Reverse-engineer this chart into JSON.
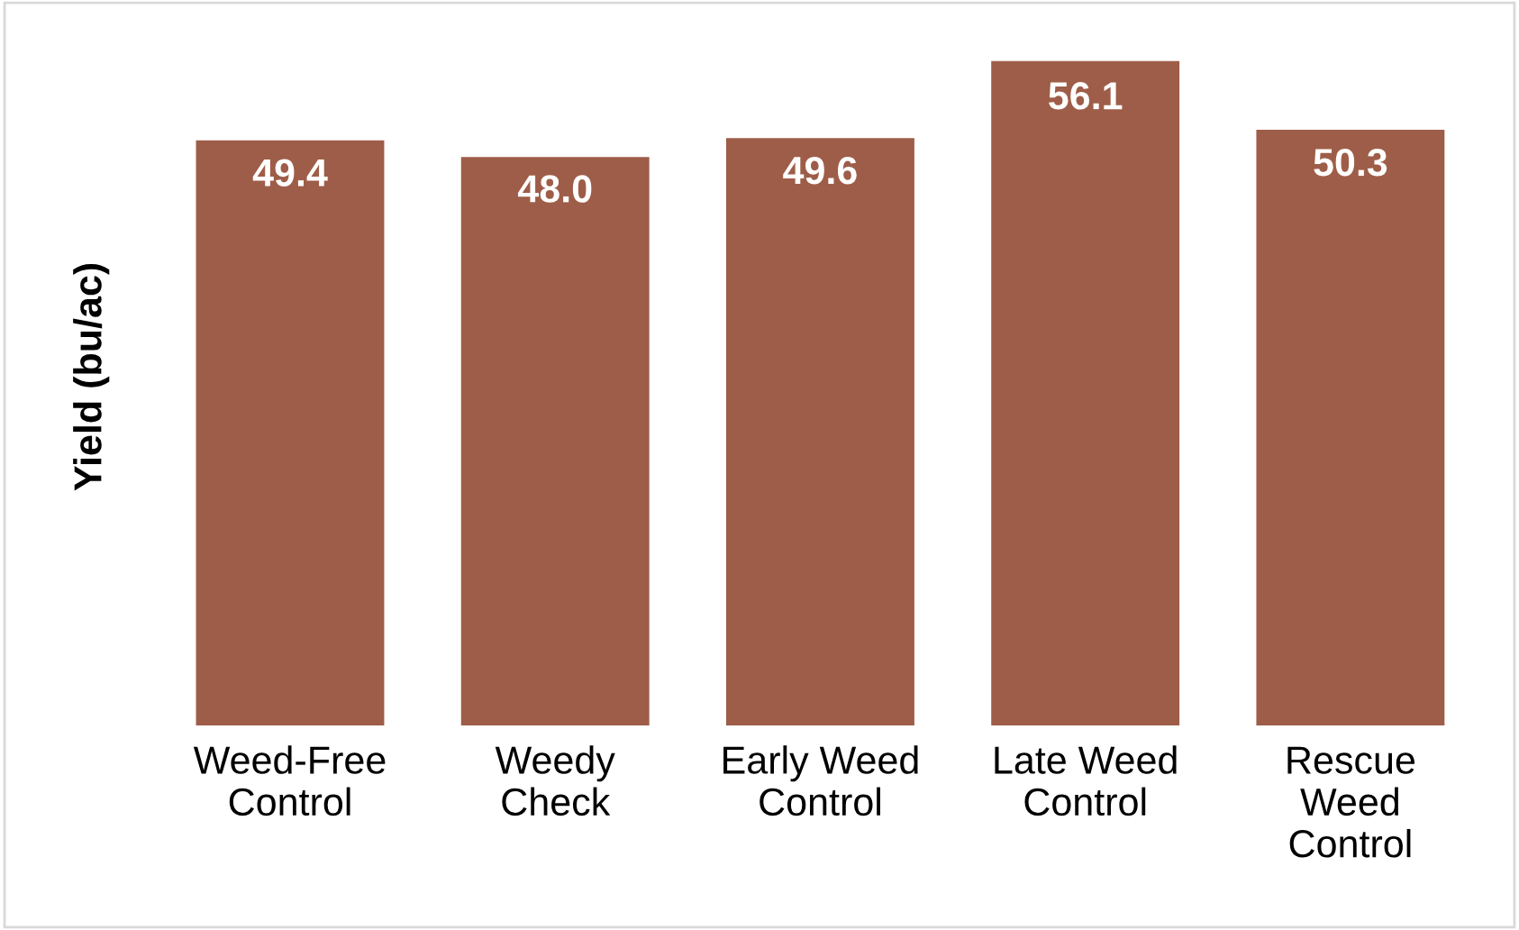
{
  "chart_data": {
    "type": "bar",
    "ylabel": "Yield (bu/ac)",
    "categories": [
      "Weed-Free\nControl",
      "Weedy\nCheck",
      "Early Weed\nControl",
      "Late Weed\nControl",
      "Rescue\nWeed\nControl"
    ],
    "values": [
      49.4,
      48.0,
      49.6,
      56.1,
      50.3
    ],
    "value_labels": [
      "49.4",
      "48.0",
      "49.6",
      "56.1",
      "50.3"
    ],
    "color": "#9e5d48",
    "tick_labels": "x",
    "grid": false,
    "legend": false
  }
}
